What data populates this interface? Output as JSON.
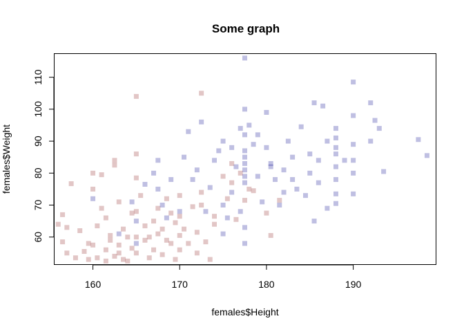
{
  "chart_data": {
    "type": "scatter",
    "title": "Some graph",
    "xlabel": "females$Height",
    "ylabel": "females$Weight",
    "xlim": [
      155.5,
      199.5
    ],
    "ylim": [
      51.5,
      117.5
    ],
    "xticks": [
      160,
      170,
      180,
      190
    ],
    "yticks": [
      60,
      70,
      80,
      90,
      100,
      110
    ],
    "grid": false,
    "legend": "none",
    "marker": "square",
    "series": [
      {
        "color": "#8B1A1A",
        "opacity": 0.25,
        "points": [
          [
            156.0,
            64.0
          ],
          [
            156.5,
            67.0
          ],
          [
            157.0,
            55.0
          ],
          [
            157.5,
            76.7
          ],
          [
            157.0,
            63.0
          ],
          [
            156.5,
            58.5
          ],
          [
            158.0,
            53.5
          ],
          [
            158.5,
            62.0
          ],
          [
            159.0,
            55.5
          ],
          [
            159.5,
            58.0
          ],
          [
            159.5,
            53.0
          ],
          [
            160.0,
            75.0
          ],
          [
            160.0,
            80.0
          ],
          [
            160.0,
            57.5
          ],
          [
            160.5,
            53.5
          ],
          [
            160.5,
            63.5
          ],
          [
            161.0,
            69.0
          ],
          [
            161.0,
            79.5
          ],
          [
            161.5,
            66.0
          ],
          [
            161.5,
            56.0
          ],
          [
            161.5,
            52.5
          ],
          [
            162.0,
            59.0
          ],
          [
            162.0,
            60.5
          ],
          [
            162.5,
            54.0
          ],
          [
            162.5,
            82.5
          ],
          [
            162.5,
            84.0
          ],
          [
            163.0,
            71.0
          ],
          [
            163.0,
            55.0
          ],
          [
            163.0,
            57.5
          ],
          [
            163.5,
            62.5
          ],
          [
            163.5,
            53.0
          ],
          [
            164.0,
            60.0
          ],
          [
            164.0,
            52.5
          ],
          [
            164.5,
            67.5
          ],
          [
            164.5,
            56.5
          ],
          [
            165.0,
            104.0
          ],
          [
            165.0,
            86.0
          ],
          [
            165.0,
            78.5
          ],
          [
            165.0,
            68.0
          ],
          [
            165.0,
            60.0
          ],
          [
            165.0,
            55.0
          ],
          [
            165.5,
            73.0
          ],
          [
            166.0,
            59.0
          ],
          [
            166.0,
            63.5
          ],
          [
            166.5,
            60.0
          ],
          [
            166.5,
            53.5
          ],
          [
            167.0,
            65.0
          ],
          [
            167.0,
            56.0
          ],
          [
            167.5,
            61.0
          ],
          [
            167.5,
            69.0
          ],
          [
            168.0,
            62.5
          ],
          [
            168.0,
            54.5
          ],
          [
            168.5,
            59.0
          ],
          [
            168.5,
            72.0
          ],
          [
            169.0,
            67.5
          ],
          [
            169.0,
            58.0
          ],
          [
            169.5,
            64.5
          ],
          [
            169.5,
            53.0
          ],
          [
            170.0,
            73.0
          ],
          [
            170.0,
            66.5
          ],
          [
            170.0,
            60.5
          ],
          [
            170.0,
            56.0
          ],
          [
            170.5,
            62.5
          ],
          [
            171.0,
            58.0
          ],
          [
            171.5,
            69.5
          ],
          [
            172.0,
            61.5
          ],
          [
            172.0,
            55.0
          ],
          [
            172.5,
            74.0
          ],
          [
            172.5,
            70.0
          ],
          [
            172.5,
            105.0
          ],
          [
            173.0,
            58.5
          ],
          [
            173.5,
            53.0
          ],
          [
            174.0,
            66.5
          ],
          [
            174.0,
            64.0
          ],
          [
            175.0,
            79.0
          ],
          [
            175.5,
            72.0
          ],
          [
            176.0,
            77.0
          ],
          [
            176.5,
            65.5
          ],
          [
            177.0,
            80.0
          ],
          [
            177.5,
            71.5
          ],
          [
            178.0,
            75.0
          ],
          [
            178.5,
            74.5
          ],
          [
            180.0,
            67.5
          ],
          [
            180.5,
            60.5
          ],
          [
            181.5,
            71.5
          ],
          [
            176.0,
            83.0
          ]
        ]
      },
      {
        "color": "#00008B",
        "opacity": 0.25,
        "points": [
          [
            160.0,
            72.0
          ],
          [
            163.0,
            61.0
          ],
          [
            164.5,
            71.0
          ],
          [
            165.0,
            65.0
          ],
          [
            165.0,
            58.0
          ],
          [
            166.0,
            76.5
          ],
          [
            167.0,
            80.0
          ],
          [
            167.5,
            84.0
          ],
          [
            167.5,
            75.0
          ],
          [
            168.0,
            70.0
          ],
          [
            168.5,
            66.0
          ],
          [
            169.0,
            78.0
          ],
          [
            170.0,
            68.0
          ],
          [
            170.5,
            85.0
          ],
          [
            171.0,
            93.0
          ],
          [
            171.5,
            78.0
          ],
          [
            172.0,
            81.0
          ],
          [
            172.5,
            96.0
          ],
          [
            173.0,
            68.0
          ],
          [
            173.5,
            75.5
          ],
          [
            174.0,
            84.0
          ],
          [
            174.5,
            87.0
          ],
          [
            175.0,
            90.0
          ],
          [
            175.0,
            70.0
          ],
          [
            175.5,
            66.0
          ],
          [
            175.0,
            61.0
          ],
          [
            176.0,
            88.0
          ],
          [
            176.0,
            74.0
          ],
          [
            176.5,
            82.0
          ],
          [
            177.0,
            94.0
          ],
          [
            177.0,
            68.0
          ],
          [
            177.5,
            63.0
          ],
          [
            177.5,
            58.0
          ],
          [
            177.5,
            116.0
          ],
          [
            177.5,
            100.0
          ],
          [
            177.5,
            92.0
          ],
          [
            177.5,
            87.0
          ],
          [
            177.5,
            85.0
          ],
          [
            177.5,
            83.0
          ],
          [
            177.5,
            81.0
          ],
          [
            177.5,
            79.0
          ],
          [
            177.5,
            77.0
          ],
          [
            178.0,
            95.0
          ],
          [
            178.5,
            89.0
          ],
          [
            179.0,
            92.0
          ],
          [
            179.0,
            79.0
          ],
          [
            179.5,
            71.0
          ],
          [
            180.0,
            99.0
          ],
          [
            180.0,
            88.0
          ],
          [
            180.5,
            83.0
          ],
          [
            180.5,
            82.0
          ],
          [
            181.0,
            78.0
          ],
          [
            181.5,
            70.0
          ],
          [
            182.0,
            81.0
          ],
          [
            182.0,
            74.0
          ],
          [
            182.5,
            90.0
          ],
          [
            183.0,
            85.0
          ],
          [
            183.0,
            78.0
          ],
          [
            183.5,
            75.0
          ],
          [
            184.0,
            94.5
          ],
          [
            184.5,
            73.0
          ],
          [
            185.0,
            86.0
          ],
          [
            185.0,
            80.0
          ],
          [
            185.5,
            102.0
          ],
          [
            185.5,
            65.0
          ],
          [
            186.0,
            84.0
          ],
          [
            186.0,
            77.0
          ],
          [
            186.5,
            101.0
          ],
          [
            187.0,
            90.0
          ],
          [
            187.0,
            69.0
          ],
          [
            188.0,
            94.0
          ],
          [
            188.0,
            91.0
          ],
          [
            188.0,
            88.0
          ],
          [
            188.0,
            86.0
          ],
          [
            188.0,
            82.0
          ],
          [
            188.0,
            78.0
          ],
          [
            188.0,
            73.5
          ],
          [
            188.0,
            70.5
          ],
          [
            189.0,
            84.0
          ],
          [
            190.0,
            108.5
          ],
          [
            190.0,
            98.0
          ],
          [
            190.0,
            89.0
          ],
          [
            190.0,
            84.0
          ],
          [
            190.0,
            80.0
          ],
          [
            190.0,
            73.5
          ],
          [
            192.0,
            102.0
          ],
          [
            192.0,
            90.0
          ],
          [
            192.5,
            96.5
          ],
          [
            193.0,
            94.0
          ],
          [
            193.5,
            80.5
          ],
          [
            197.5,
            90.5
          ],
          [
            198.5,
            85.5
          ]
        ]
      }
    ]
  }
}
